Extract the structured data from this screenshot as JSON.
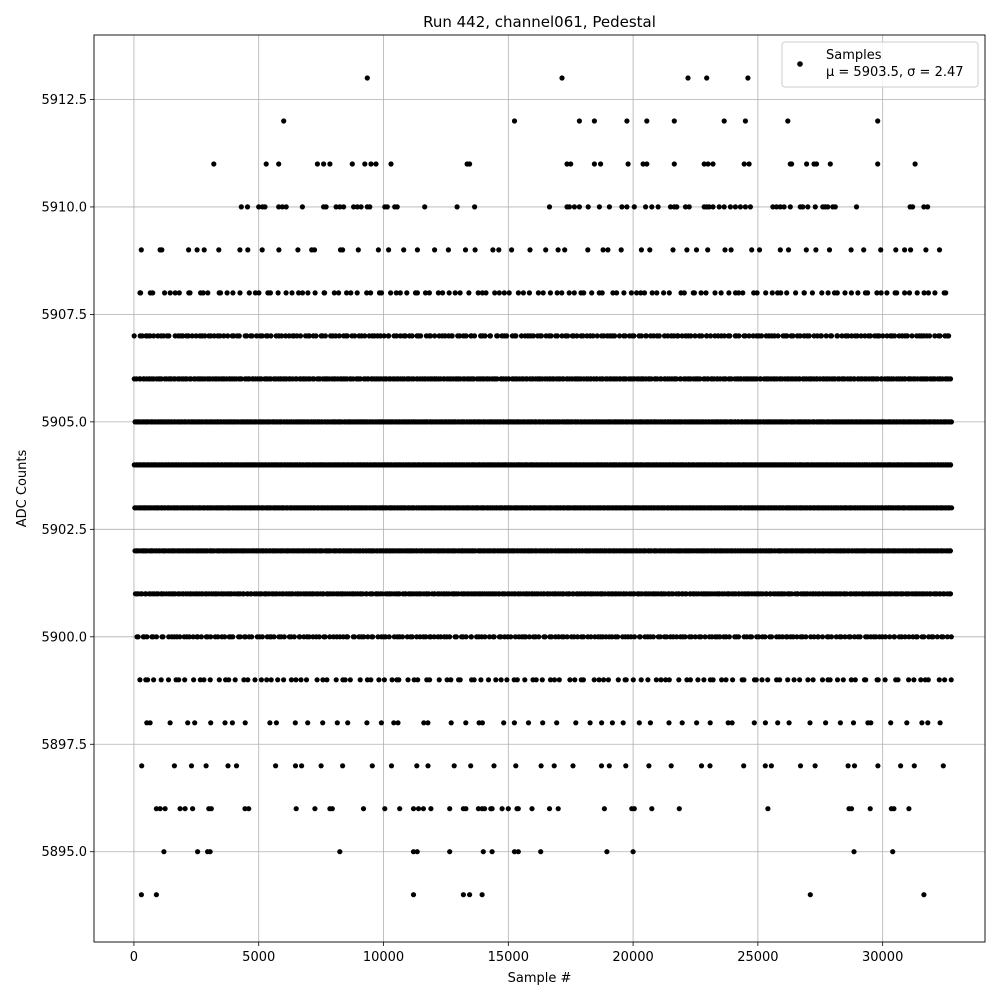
{
  "chart_data": {
    "type": "scatter",
    "title": "Run 442, channel061, Pedestal",
    "xlabel": "Sample #",
    "ylabel": "ADC Counts",
    "xlim": [
      -1600,
      34100
    ],
    "ylim": [
      5892.9,
      5914.0
    ],
    "grid": true,
    "legend_position": "top-right",
    "marker_color": "#000000",
    "x_ticks": [
      0,
      5000,
      10000,
      15000,
      20000,
      25000,
      30000
    ],
    "x_tick_labels": [
      "0",
      "5000",
      "10000",
      "15000",
      "20000",
      "25000",
      "30000"
    ],
    "y_ticks": [
      5895.0,
      5897.5,
      5900.0,
      5902.5,
      5905.0,
      5907.5,
      5910.0,
      5912.5
    ],
    "y_tick_labels": [
      "5895.0",
      "5897.5",
      "5900.0",
      "5902.5",
      "5905.0",
      "5907.5",
      "5910.0",
      "5912.5"
    ],
    "series": [
      {
        "name": "Samples",
        "label_line2": "μ = 5903.5, σ = 2.47",
        "mean": 5903.5,
        "sigma": 2.47,
        "n_samples": 32768,
        "levels": [
          {
            "y": 5913,
            "x": [
              9350,
              17150,
              22200,
              22950,
              24600
            ]
          },
          {
            "y": 5912,
            "x": [
              6000,
              15250,
              17850,
              18450,
              19750,
              20550,
              21650,
              23650,
              24500,
              26200,
              29800
            ]
          },
          {
            "y": 5911,
            "x": [
              3200,
              5300,
              5800,
              7350,
              7600,
              7850,
              8750,
              9250,
              9500,
              9700,
              10300,
              13350,
              13450,
              17350,
              17500,
              18450,
              18700,
              19800,
              20400,
              20550,
              21650,
              22850,
              23000,
              23200,
              24450,
              24650,
              26300,
              26350,
              26950,
              27250,
              27350,
              27900,
              29800,
              31300
            ]
          },
          {
            "y": 5910,
            "x": [
              4300,
              4550,
              5000,
              5150,
              5250,
              5800,
              5950,
              6100,
              6750,
              7600,
              7700,
              8100,
              8250,
              8400,
              8800,
              8950,
              9100,
              9350,
              9450,
              10050,
              10150,
              10450,
              10550,
              11650,
              12950,
              13650,
              16650,
              17350,
              17450,
              17650,
              17850,
              18200,
              18650,
              19050,
              19550,
              19750,
              20050,
              20500,
              20750,
              21000,
              21500,
              21650,
              21750,
              22100,
              22250,
              22850,
              22950,
              23050,
              23200,
              23450,
              23650,
              23900,
              24100,
              24300,
              24500,
              24700,
              25600,
              25750,
              25900,
              26050,
              26300,
              26700,
              26800,
              27000,
              27300,
              27600,
              27700,
              27800,
              28000,
              28100,
              28950,
              31100,
              31200,
              31650,
              31800
            ]
          }
        ],
        "band_levels": [
          5894,
          5895,
          5896,
          5897,
          5898,
          5899,
          5900,
          5901,
          5902,
          5903,
          5904,
          5905,
          5906,
          5907,
          5908,
          5909
        ],
        "sparse_levels": [
          {
            "y": 5894,
            "x": [
              300,
              900,
              11200,
              13200,
              13450,
              13950,
              27100,
              31650
            ]
          },
          {
            "y": 5895,
            "x": [
              1200,
              2550,
              2950,
              3050,
              8250,
              11200,
              11350,
              12650,
              14000,
              14350,
              15250,
              15400,
              16300,
              18950,
              20000,
              28850,
              30400
            ]
          },
          {
            "y": 5896,
            "x": [
              900,
              1050,
              1250,
              1850,
              2050,
              2350,
              3000,
              3100,
              4450,
              4600,
              6500,
              7250,
              7850,
              7950,
              9200,
              10050,
              10650,
              11200,
              11400,
              11600,
              11900,
              12650,
              13200,
              13300,
              13800,
              13950,
              14050,
              14300,
              14350,
              14750,
              15000,
              15350,
              15400,
              15950,
              16650,
              17000,
              18850,
              19950,
              20050,
              20750,
              21850,
              25400,
              28650,
              28750,
              29500,
              30350,
              30450,
              31050
            ]
          }
        ]
      }
    ]
  }
}
